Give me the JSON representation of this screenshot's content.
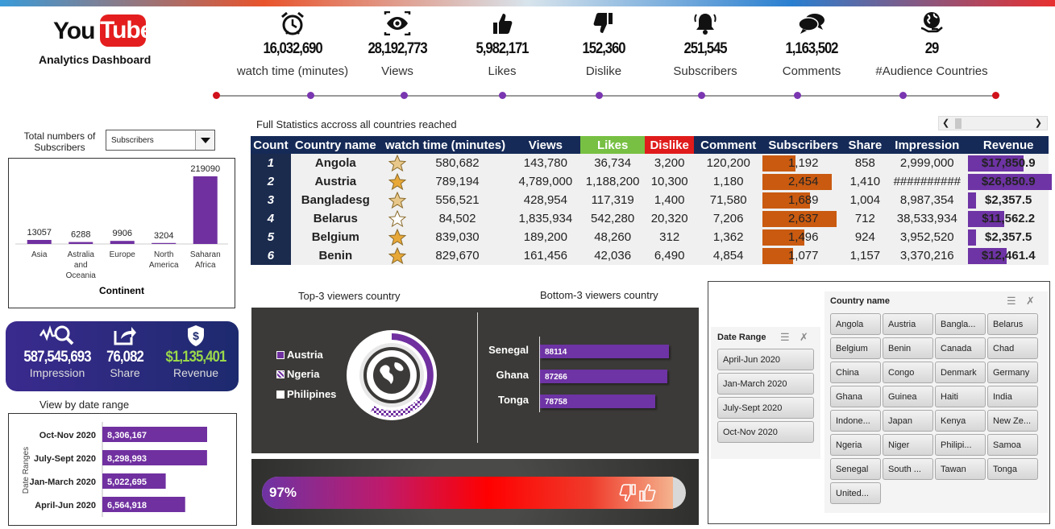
{
  "header": {
    "logo_you": "You",
    "logo_tube": "Tube",
    "subtitle": "Analytics Dashboard"
  },
  "kpis": [
    {
      "icon": "alarm-clock-icon",
      "value": "16,032,690",
      "label": "watch time (minutes)"
    },
    {
      "icon": "eye-icon",
      "value": "28,192,773",
      "label": "Views"
    },
    {
      "icon": "thumbs-up-icon",
      "value": "5,982,171",
      "label": "Likes"
    },
    {
      "icon": "thumbs-down-icon",
      "value": "152,360",
      "label": "Dislike"
    },
    {
      "icon": "bell-icon",
      "value": "251,545",
      "label": "Subscribers"
    },
    {
      "icon": "speech-bubbles-icon",
      "value": "1,163,502",
      "label": "Comments"
    },
    {
      "icon": "globe-hand-icon",
      "value": "29",
      "label": "#Audience Countries"
    }
  ],
  "table": {
    "title": "Full Statistics accross all countries reached",
    "headers": [
      "Count",
      "Country name",
      "watch time (minutes)",
      "Views",
      "Likes",
      "Dislike",
      "Comment",
      "Subscribers",
      "Share",
      "Impression",
      "Revenue"
    ],
    "rows": [
      {
        "count": "1",
        "country": "Angola",
        "star": "half",
        "watch": "580,682",
        "views": "143,780",
        "likes": "36,734",
        "dislike": "3,200",
        "comment": "120,200",
        "subs": "1,192",
        "subs_frac": 0.45,
        "share": "858",
        "impression": "2,999,000",
        "revenue": "$17,850.9",
        "rev_frac": 0.66
      },
      {
        "count": "2",
        "country": "Austria",
        "star": "full",
        "watch": "789,194",
        "views": "4,789,000",
        "likes": "1,188,200",
        "dislike": "10,300",
        "comment": "1,180",
        "subs": "2,454",
        "subs_frac": 0.93,
        "share": "1,410",
        "impression": "##########",
        "revenue": "$26,850.9",
        "rev_frac": 1.0
      },
      {
        "count": "3",
        "country": "Bangladesg",
        "star": "half",
        "watch": "556,521",
        "views": "428,954",
        "likes": "117,319",
        "dislike": "1,400",
        "comment": "71,580",
        "subs": "1,689",
        "subs_frac": 0.64,
        "share": "1,004",
        "impression": "8,987,354",
        "revenue": "$2,357.5",
        "rev_frac": 0.09
      },
      {
        "count": "4",
        "country": "Belarus",
        "star": "empty",
        "watch": "84,502",
        "views": "1,835,934",
        "likes": "542,280",
        "dislike": "20,320",
        "comment": "7,206",
        "subs": "2,637",
        "subs_frac": 1.0,
        "share": "712",
        "impression": "38,533,934",
        "revenue": "$11,562.2",
        "rev_frac": 0.43
      },
      {
        "count": "5",
        "country": "Belgium",
        "star": "full",
        "watch": "839,030",
        "views": "189,200",
        "likes": "48,260",
        "dislike": "312",
        "comment": "1,362",
        "subs": "1,496",
        "subs_frac": 0.57,
        "share": "924",
        "impression": "3,952,520",
        "revenue": "$2,357.5",
        "rev_frac": 0.09
      },
      {
        "count": "6",
        "country": "Benin",
        "star": "full",
        "watch": "829,670",
        "views": "161,456",
        "likes": "42,036",
        "dislike": "6,490",
        "comment": "4,854",
        "subs": "1,077",
        "subs_frac": 0.41,
        "share": "1,157",
        "impression": "3,370,216",
        "revenue": "$12,461.4",
        "rev_frac": 0.46
      }
    ]
  },
  "continent_filter": {
    "label": "Total numbers of Subscribers",
    "selected": "Subscribers"
  },
  "chart_data": [
    {
      "type": "bar",
      "categories": [
        "Asia",
        "Astralia and Oceania",
        "Europe",
        "North America",
        "Saharan Africa"
      ],
      "values": [
        13057,
        6288,
        9906,
        3204,
        219090
      ],
      "xlabel": "Continent",
      "ylim": [
        0,
        219090
      ],
      "color": "#7030a0"
    },
    {
      "type": "bar",
      "orientation": "horizontal",
      "title": "View by date range",
      "categories": [
        "Oct-Nov 2020",
        "July-Sept 2020",
        "Jan-March 2020",
        "April-Jun 2020"
      ],
      "values": [
        8306167,
        8298993,
        5022695,
        6564918
      ],
      "value_labels": [
        "8,306,167",
        "8,298,993",
        "5,022,695",
        "6,564,918"
      ],
      "ylabel": "Date Ranges",
      "color": "#7030a0"
    },
    {
      "type": "pie",
      "title": "Top-3 viewers country",
      "categories": [
        "Austria",
        "Ngeria",
        "Philipines"
      ],
      "color": "#7030a0"
    },
    {
      "type": "bar",
      "orientation": "horizontal",
      "title": "Bottom-3 viewers country",
      "categories": [
        "Senegal",
        "Ghana",
        "Tonga"
      ],
      "values": [
        88114,
        87266,
        78758
      ],
      "color": "#6e33a4"
    }
  ],
  "summary": [
    {
      "icon": "analytics-magnifier-icon",
      "value": "587,545,693",
      "label": "Impression"
    },
    {
      "icon": "share-arrow-icon",
      "value": "76,082",
      "label": "Share"
    },
    {
      "icon": "dollar-shield-icon",
      "value": "$1,135,401",
      "label": "Revenue",
      "color": "#9ad84a"
    }
  ],
  "progress": {
    "text": "97%",
    "fraction": 0.97
  },
  "date_slicer": {
    "title": "Date Range",
    "items": [
      "April-Jun 2020",
      "Jan-March 2020",
      "July-Sept 2020",
      "Oct-Nov 2020"
    ]
  },
  "country_slicer": {
    "title": "Country name",
    "items": [
      "Angola",
      "Austria",
      "Bangla...",
      "Belarus",
      "Belgium",
      "Benin",
      "Canada",
      "Chad",
      "China",
      "Congo",
      "Denmark",
      "Germany",
      "Ghana",
      "Guinea",
      "Haiti",
      "India",
      "Indone...",
      "Japan",
      "Kenya",
      "New Ze...",
      "Ngeria",
      "Niger",
      "Philipi...",
      "Samoa",
      "Senegal",
      "South ...",
      "Tawan",
      "Tonga",
      "United..."
    ]
  },
  "colors": {
    "purple": "#7030a0",
    "orange": "#c95a10",
    "navy": "#152a57",
    "green": "#77c043",
    "red": "#e01b1b"
  }
}
